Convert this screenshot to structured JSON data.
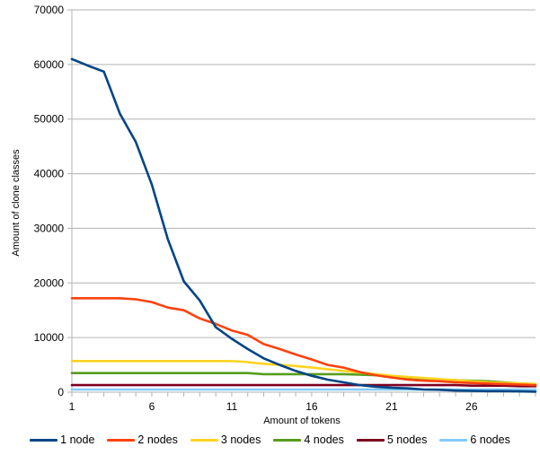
{
  "chart_data": {
    "type": "line",
    "title": "",
    "xlabel": "Amount of tokens",
    "ylabel": "Amount of clone classes",
    "x": [
      1,
      2,
      3,
      4,
      5,
      6,
      7,
      8,
      9,
      10,
      11,
      12,
      13,
      14,
      15,
      16,
      17,
      18,
      19,
      20,
      21,
      22,
      23,
      24,
      25,
      26,
      27,
      28,
      29,
      30
    ],
    "xlim": [
      1,
      30
    ],
    "ylim": [
      0,
      70000
    ],
    "x_ticks": [
      1,
      6,
      11,
      16,
      21,
      26
    ],
    "y_ticks": [
      0,
      10000,
      20000,
      30000,
      40000,
      50000,
      60000,
      70000
    ],
    "grid": "horizontal",
    "legend_position": "bottom",
    "series": [
      {
        "name": "1 node",
        "color": "#004586",
        "values": [
          61000,
          59800,
          58700,
          51000,
          45800,
          38000,
          28000,
          20300,
          16800,
          11900,
          9800,
          7900,
          6200,
          5000,
          3900,
          3000,
          2300,
          1800,
          1300,
          1000,
          800,
          700,
          500,
          450,
          300,
          250,
          200,
          200,
          150,
          100
        ]
      },
      {
        "name": "2 nodes",
        "color": "#ff420e",
        "values": [
          17200,
          17200,
          17200,
          17200,
          17000,
          16500,
          15500,
          15000,
          13500,
          12500,
          11300,
          10500,
          8800,
          7900,
          6900,
          6000,
          5000,
          4500,
          3700,
          3100,
          2700,
          2300,
          2100,
          2000,
          1800,
          1700,
          1600,
          1500,
          1400,
          1300
        ]
      },
      {
        "name": "3 nodes",
        "color": "#ffd320",
        "values": [
          5700,
          5700,
          5700,
          5700,
          5700,
          5700,
          5700,
          5700,
          5700,
          5700,
          5700,
          5500,
          5200,
          5000,
          4800,
          4500,
          4200,
          3900,
          3600,
          3300,
          3000,
          2800,
          2600,
          2400,
          2200,
          2000,
          1800,
          1700,
          1600,
          1500
        ]
      },
      {
        "name": "4 nodes",
        "color": "#579d1c",
        "values": [
          3500,
          3500,
          3500,
          3500,
          3500,
          3500,
          3500,
          3500,
          3500,
          3500,
          3500,
          3500,
          3300,
          3300,
          3300,
          3300,
          3300,
          3300,
          3200,
          3100,
          2900,
          2700,
          2500,
          2300,
          2200,
          2100,
          2000,
          1800,
          1600,
          1500
        ]
      },
      {
        "name": "5 nodes",
        "color": "#7e0021",
        "values": [
          1300,
          1300,
          1300,
          1300,
          1300,
          1300,
          1300,
          1300,
          1300,
          1300,
          1300,
          1300,
          1300,
          1300,
          1300,
          1300,
          1300,
          1300,
          1300,
          1300,
          1300,
          1300,
          1300,
          1300,
          1300,
          1200,
          1200,
          1200,
          1100,
          1100
        ]
      },
      {
        "name": "6 nodes",
        "color": "#83caff",
        "values": [
          500,
          500,
          500,
          500,
          500,
          500,
          500,
          500,
          500,
          500,
          500,
          500,
          500,
          500,
          500,
          500,
          500,
          500,
          500,
          500,
          500,
          500,
          500,
          500,
          500,
          500,
          500,
          500,
          500,
          500
        ]
      }
    ]
  }
}
